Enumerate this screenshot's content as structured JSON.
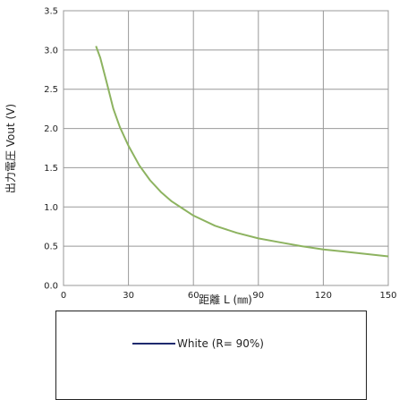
{
  "chart_data": {
    "type": "line",
    "xlabel": "距離 L (㎜)",
    "ylabel": "出力電圧 Vout (V)",
    "xlim": [
      0,
      150
    ],
    "ylim": [
      0,
      3.5
    ],
    "xticks": [
      "0",
      "30",
      "60",
      "90",
      "120",
      "150"
    ],
    "yticks": [
      "0.0",
      "0.5",
      "1.0",
      "1.5",
      "2.0",
      "2.5",
      "3.0",
      "3.5"
    ],
    "grid": true,
    "legend_position": "bottom",
    "series": [
      {
        "name": "White (R= 90%)",
        "color": "#8db360",
        "legend_color": "#1f2a6e",
        "x": [
          15,
          17,
          20,
          23,
          26,
          30,
          35,
          40,
          45,
          50,
          55,
          60,
          70,
          80,
          90,
          100,
          110,
          120,
          130,
          140,
          150
        ],
        "y": [
          3.05,
          2.9,
          2.58,
          2.25,
          2.02,
          1.78,
          1.53,
          1.34,
          1.19,
          1.07,
          0.98,
          0.89,
          0.76,
          0.67,
          0.6,
          0.55,
          0.5,
          0.46,
          0.43,
          0.4,
          0.37
        ]
      }
    ]
  }
}
